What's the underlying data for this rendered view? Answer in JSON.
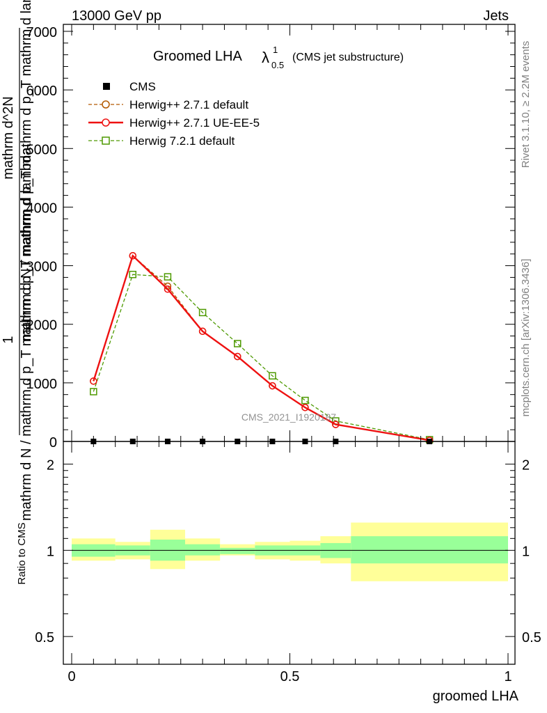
{
  "header": {
    "left": "13000 GeV pp",
    "right": "Jets"
  },
  "side_labels": {
    "rivet": "Rivet 3.1.10, ≥ 2.2M events",
    "mcplots": "mcplots.cern.ch [arXiv:1306.3436]"
  },
  "watermark": "CMS_2021_I1920187",
  "title": {
    "main": "Groomed LHA",
    "lambda": "λ",
    "sup": "1",
    "sub": "0.5",
    "note": "(CMS jet substructure)"
  },
  "ylabel": {
    "numer": "1",
    "denom": "mathrm d N / mathrm d p_T mathrm d p_T mathrm d lambda",
    "overline": "mathrm d^2N"
  },
  "ratio_ylabel": "Ratio to CMS",
  "xlabel": "groomed LHA",
  "legend": [
    {
      "label": "CMS",
      "color": "#000000",
      "marker": "square-filled",
      "line": "none"
    },
    {
      "label": "Herwig++ 2.7.1 default",
      "color": "#b35900",
      "marker": "circle-open",
      "line": "dashed"
    },
    {
      "label": "Herwig++ 2.7.1 UE-EE-5",
      "color": "#ee1111",
      "marker": "circle-open",
      "line": "solid"
    },
    {
      "label": "Herwig 7.2.1 default",
      "color": "#4d9900",
      "marker": "square-open",
      "line": "dashed"
    }
  ],
  "chart_data": {
    "type": "line",
    "main_ylim": [
      0,
      7000
    ],
    "main_yticks": [
      0,
      1000,
      2000,
      3000,
      4000,
      5000,
      6000,
      7000
    ],
    "main_ytick_labels": [
      "0",
      "1000",
      "2000",
      "3000",
      "4000",
      "5000",
      "6000",
      "7000"
    ],
    "xlim": [
      0,
      1
    ],
    "xticks": [
      0,
      0.5,
      1
    ],
    "xtick_labels": [
      "0",
      "0.5",
      "1"
    ],
    "ratio_ylim": [
      0.4,
      2.4
    ],
    "ratio_log": true,
    "ratio_yticks": [
      0.5,
      1,
      2
    ],
    "ratio_ytick_labels": [
      "0.5",
      "1",
      "2"
    ],
    "x": [
      0.05,
      0.14,
      0.22,
      0.3,
      0.38,
      0.46,
      0.535,
      0.605,
      0.82
    ],
    "series": [
      {
        "name": "CMS",
        "values": [
          0,
          0,
          0,
          0,
          0,
          0,
          0,
          0,
          0
        ]
      },
      {
        "name": "Herwig++ 2.7.1 default",
        "values": [
          1030,
          3170,
          2650,
          1880,
          1450,
          950,
          580,
          290,
          20
        ]
      },
      {
        "name": "Herwig++ 2.7.1 UE-EE-5",
        "values": [
          1030,
          3170,
          2600,
          1880,
          1450,
          950,
          580,
          290,
          20
        ]
      },
      {
        "name": "Herwig 7.2.1 default",
        "values": [
          850,
          2850,
          2810,
          2200,
          1670,
          1120,
          700,
          350,
          30
        ]
      }
    ],
    "ratio_bins": [
      {
        "lo": 0.0,
        "hi": 0.1,
        "inner": [
          0.95,
          1.05
        ],
        "outer": [
          0.92,
          1.1
        ]
      },
      {
        "lo": 0.1,
        "hi": 0.18,
        "inner": [
          0.96,
          1.04
        ],
        "outer": [
          0.93,
          1.07
        ]
      },
      {
        "lo": 0.18,
        "hi": 0.26,
        "inner": [
          0.92,
          1.09
        ],
        "outer": [
          0.86,
          1.18
        ]
      },
      {
        "lo": 0.26,
        "hi": 0.34,
        "inner": [
          0.96,
          1.05
        ],
        "outer": [
          0.92,
          1.1
        ]
      },
      {
        "lo": 0.34,
        "hi": 0.42,
        "inner": [
          0.97,
          1.02
        ],
        "outer": [
          0.96,
          1.05
        ]
      },
      {
        "lo": 0.42,
        "hi": 0.5,
        "inner": [
          0.96,
          1.04
        ],
        "outer": [
          0.93,
          1.07
        ]
      },
      {
        "lo": 0.5,
        "hi": 0.57,
        "inner": [
          0.96,
          1.04
        ],
        "outer": [
          0.92,
          1.08
        ]
      },
      {
        "lo": 0.57,
        "hi": 0.64,
        "inner": [
          0.94,
          1.06
        ],
        "outer": [
          0.9,
          1.12
        ]
      },
      {
        "lo": 0.64,
        "hi": 1.0,
        "inner": [
          0.9,
          1.12
        ],
        "outer": [
          0.78,
          1.25
        ]
      }
    ]
  }
}
